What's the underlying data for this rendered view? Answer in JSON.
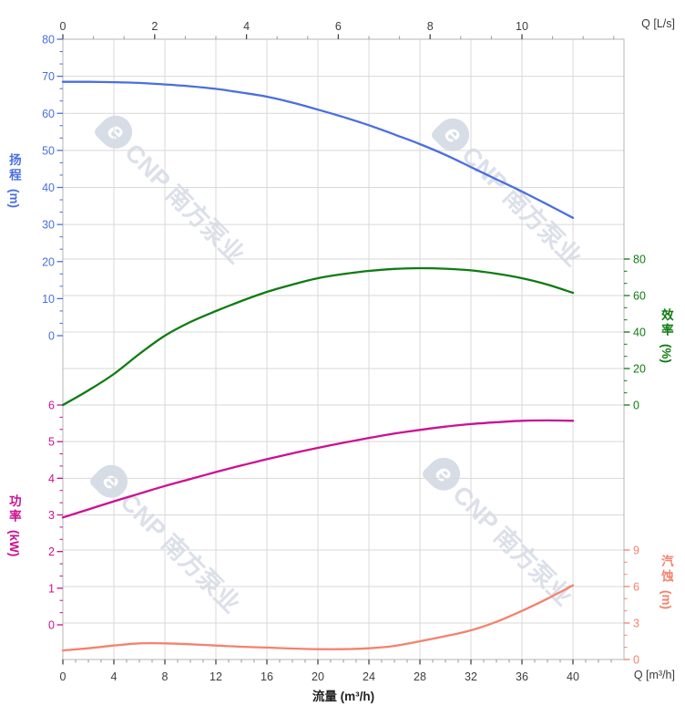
{
  "labels": {
    "head_title": "扬程",
    "head_unit": "(m)",
    "power_title": "功率",
    "power_unit": "(kW)",
    "efficiency_title": "效率",
    "efficiency_unit": "(%)",
    "npsh_title": "汽蚀",
    "npsh_unit": "(m)",
    "flow_title": "流量 (m³/h)",
    "q_ls": "Q [L/s]",
    "q_m3h": "Q [m³/h]"
  },
  "watermark": {
    "logo": "e",
    "text": "CNP 南方泵业"
  },
  "colors": {
    "head": "#4a6fe0",
    "efficiency": "#0e7c12",
    "power": "#cb1192",
    "npsh": "#f4826d",
    "grid": "#d9d9d9",
    "border": "#b5b5b5",
    "tick_major_dark": "#454545",
    "tick_minor_dark": "#9a9a9a",
    "xy_tick_text": "#3d3d3d"
  },
  "chart_data": {
    "type": "line",
    "title": "",
    "xlabel": "流量 (m³/h)",
    "x_axis_bottom": {
      "unit": "Q [m³/h]",
      "range": [
        0,
        44
      ],
      "majors": [
        0,
        4,
        8,
        12,
        16,
        20,
        24,
        28,
        32,
        36,
        40
      ],
      "minor_step": 1
    },
    "x_axis_top": {
      "unit": "Q [L/s]",
      "range": [
        0,
        12.22
      ],
      "majors": [
        0,
        2,
        4,
        6,
        8,
        10
      ],
      "minor_step": 0.6667
    },
    "y_axes": [
      {
        "id": "head",
        "label": "扬程",
        "unit": "(m)",
        "range": [
          0,
          80
        ],
        "majors": [
          0,
          10,
          20,
          30,
          40,
          50,
          60,
          70,
          80
        ],
        "minor_divisions": 3,
        "side": "left",
        "color": "#4a6fe0"
      },
      {
        "id": "efficiency",
        "label": "效率",
        "unit": "(%)",
        "range": [
          0,
          80
        ],
        "majors": [
          0,
          20,
          40,
          60,
          80
        ],
        "minor_divisions": 3,
        "side": "right",
        "color": "#0e7c12"
      },
      {
        "id": "power",
        "label": "功率",
        "unit": "(kW)",
        "range": [
          0,
          6
        ],
        "majors": [
          0,
          1,
          2,
          3,
          4,
          5,
          6
        ],
        "minor_divisions": 3,
        "side": "left",
        "color": "#cb1192"
      },
      {
        "id": "npsh",
        "label": "汽蚀",
        "unit": "(m)",
        "range": [
          0,
          9
        ],
        "majors": [
          0,
          3,
          6,
          9
        ],
        "minor_divisions": 3,
        "side": "right",
        "color": "#f4826d"
      }
    ],
    "x_values_m3h": [
      0,
      2,
      4,
      6,
      8,
      10,
      12,
      14,
      16,
      18,
      20,
      22,
      24,
      26,
      28,
      30,
      32,
      34,
      36,
      38,
      40
    ],
    "series": [
      {
        "id": "head",
        "name": "扬程 (m)",
        "axis": "head",
        "color": "#4a6fe0",
        "values": [
          68.5,
          68.5,
          68.4,
          68.2,
          67.8,
          67.3,
          66.6,
          65.6,
          64.5,
          62.9,
          61.0,
          59.0,
          56.8,
          54.3,
          51.7,
          48.8,
          45.5,
          42.2,
          38.9,
          35.4,
          31.8
        ]
      },
      {
        "id": "efficiency",
        "name": "效率 (%)",
        "axis": "efficiency",
        "color": "#0e7c12",
        "values": [
          0,
          8,
          17,
          28,
          38,
          45.5,
          51.5,
          57,
          62,
          66,
          69.5,
          71.8,
          73.5,
          74.6,
          75,
          74.7,
          73.8,
          72,
          69.5,
          66,
          61.5
        ]
      },
      {
        "id": "power",
        "name": "功率 (kW)",
        "axis": "power",
        "color": "#cb1192",
        "values": [
          2.93,
          3.15,
          3.37,
          3.58,
          3.79,
          3.98,
          4.17,
          4.35,
          4.52,
          4.68,
          4.83,
          4.97,
          5.1,
          5.22,
          5.32,
          5.41,
          5.48,
          5.53,
          5.57,
          5.58,
          5.57
        ]
      },
      {
        "id": "npsh",
        "name": "汽蚀 (m)",
        "axis": "npsh",
        "color": "#f4826d",
        "values": [
          0.75,
          0.92,
          1.15,
          1.33,
          1.33,
          1.25,
          1.15,
          1.05,
          0.98,
          0.9,
          0.85,
          0.85,
          0.92,
          1.12,
          1.5,
          1.92,
          2.4,
          3.1,
          4.0,
          5.0,
          6.1
        ]
      }
    ]
  }
}
